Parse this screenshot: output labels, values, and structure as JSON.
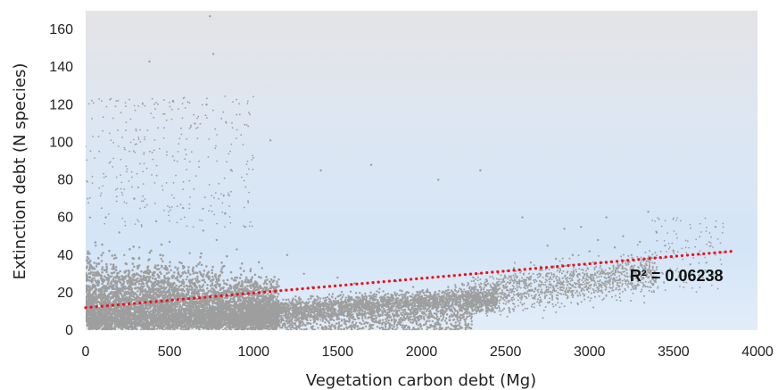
{
  "chart_data": {
    "type": "scatter",
    "title": "",
    "xlabel": "Vegetation carbon debt (Mg)",
    "ylabel": "Extinction debt (N species)",
    "xlim": [
      0,
      4000
    ],
    "ylim": [
      0,
      170
    ],
    "x_ticks": [
      0,
      500,
      1000,
      1500,
      2000,
      2500,
      3000,
      3500,
      4000
    ],
    "y_ticks": [
      0,
      20,
      40,
      60,
      80,
      100,
      120,
      140,
      160
    ],
    "grid": false,
    "legend": "none",
    "background": "gradient-gray-blue",
    "point_color": "#9e9e9e",
    "series": [
      {
        "points": [
          [
            30,
            30
          ],
          [
            60,
            45
          ],
          [
            90,
            22
          ],
          [
            120,
            60
          ],
          [
            150,
            35
          ],
          [
            180,
            18
          ],
          [
            200,
            52
          ],
          [
            230,
            40
          ],
          [
            260,
            28
          ],
          [
            290,
            70
          ],
          [
            320,
            44
          ],
          [
            350,
            31
          ],
          [
            380,
            143
          ],
          [
            400,
            25
          ],
          [
            420,
            58
          ],
          [
            450,
            38
          ],
          [
            480,
            20
          ],
          [
            500,
            47
          ],
          [
            520,
            122
          ],
          [
            550,
            33
          ],
          [
            580,
            65
          ],
          [
            600,
            27
          ],
          [
            620,
            41
          ],
          [
            650,
            110
          ],
          [
            680,
            36
          ],
          [
            700,
            53
          ],
          [
            720,
            120
          ],
          [
            740,
            167
          ],
          [
            760,
            147
          ],
          [
            780,
            48
          ],
          [
            800,
            29
          ],
          [
            830,
            62
          ],
          [
            860,
            24
          ],
          [
            900,
            43
          ],
          [
            950,
            55
          ],
          [
            1000,
            21
          ],
          [
            1050,
            33
          ],
          [
            1100,
            101
          ],
          [
            1150,
            27
          ],
          [
            1200,
            40
          ],
          [
            1250,
            18
          ],
          [
            1300,
            30
          ],
          [
            1350,
            23
          ],
          [
            1400,
            85
          ],
          [
            1450,
            19
          ],
          [
            1500,
            28
          ],
          [
            1550,
            14
          ],
          [
            1600,
            25
          ],
          [
            1650,
            17
          ],
          [
            1700,
            88
          ],
          [
            1750,
            22
          ],
          [
            1800,
            15
          ],
          [
            1850,
            26
          ],
          [
            1900,
            18
          ],
          [
            1950,
            23
          ],
          [
            2000,
            16
          ],
          [
            2050,
            20
          ],
          [
            2100,
            80
          ],
          [
            2150,
            18
          ],
          [
            2200,
            24
          ],
          [
            2250,
            19
          ],
          [
            2300,
            22
          ],
          [
            2350,
            85
          ],
          [
            2400,
            20
          ],
          [
            2450,
            25
          ],
          [
            2500,
            28
          ],
          [
            2550,
            33
          ],
          [
            2600,
            60
          ],
          [
            2650,
            36
          ],
          [
            2700,
            30
          ],
          [
            2750,
            45
          ],
          [
            2800,
            38
          ],
          [
            2850,
            54
          ],
          [
            2900,
            40
          ],
          [
            2950,
            55
          ],
          [
            3000,
            42
          ],
          [
            3050,
            48
          ],
          [
            3100,
            60
          ],
          [
            3150,
            44
          ],
          [
            3200,
            50
          ],
          [
            3250,
            40
          ],
          [
            3300,
            47
          ],
          [
            3350,
            63
          ],
          [
            3400,
            52
          ],
          [
            3450,
            45
          ],
          [
            3500,
            42
          ],
          [
            3600,
            35
          ],
          [
            3750,
            55
          ]
        ]
      }
    ],
    "trendline": {
      "type": "linear",
      "color": "#e8141e",
      "style": "dotted",
      "x": [
        0,
        3850
      ],
      "y": [
        12,
        42
      ]
    },
    "annotations": [
      {
        "text": "R² = 0.06238",
        "x": 3240,
        "y": 26
      }
    ]
  }
}
